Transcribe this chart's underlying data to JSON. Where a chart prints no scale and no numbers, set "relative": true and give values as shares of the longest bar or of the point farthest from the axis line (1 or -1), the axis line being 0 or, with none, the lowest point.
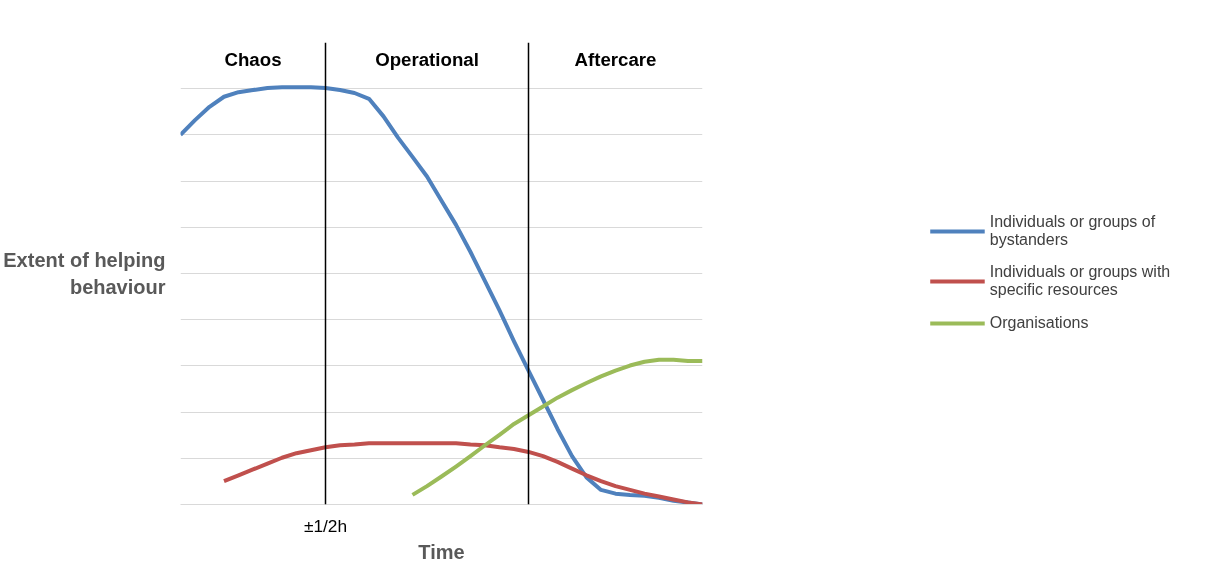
{
  "chart_data": {
    "type": "line",
    "relative": true,
    "xlabel": "Time",
    "ylabel": "Extent of helping behaviour",
    "grid": "y",
    "legend": "right",
    "line_style": "solid",
    "marker": "none",
    "categories": [
      null,
      null,
      null,
      null,
      null,
      null,
      null,
      null,
      null,
      null,
      null,
      null,
      null,
      null,
      null,
      null,
      null,
      null,
      null,
      null,
      null,
      null,
      null,
      null,
      null,
      null,
      null,
      null,
      null,
      null,
      null,
      null,
      null,
      null,
      null,
      null,
      null
    ],
    "annotations": [
      "±1/2h",
      "Chaos",
      "Operational",
      "Aftercare"
    ],
    "series": [
      {
        "name": "Individuals or groups of bystanders",
        "color": "#4f81bd",
        "values": [
          0.886,
          0.921,
          0.953,
          0.977,
          0.988,
          0.993,
          0.998,
          1,
          1,
          1,
          0.998,
          0.993,
          0.986,
          0.972,
          0.93,
          0.879,
          0.833,
          0.786,
          0.728,
          0.67,
          0.605,
          0.535,
          0.465,
          0.391,
          0.321,
          0.251,
          0.181,
          0.116,
          0.065,
          0.035,
          0.026,
          0.023,
          0.021,
          0.016,
          0.009,
          0.005,
          0
        ]
      },
      {
        "name": "Individuals or groups with specific resources",
        "color": "#c0504d",
        "values": [
          null,
          null,
          null,
          0.056,
          0.07,
          0.084,
          0.098,
          0.112,
          0.123,
          0.13,
          0.137,
          0.142,
          0.144,
          0.147,
          0.147,
          0.147,
          0.147,
          0.147,
          0.147,
          0.147,
          0.144,
          0.142,
          0.137,
          0.133,
          0.126,
          0.116,
          0.102,
          0.086,
          0.07,
          0.056,
          0.044,
          0.035,
          0.026,
          0.019,
          0.012,
          0.005,
          0
        ]
      },
      {
        "name": "Organisations",
        "color": "#9bbb59",
        "values": [
          null,
          null,
          null,
          null,
          null,
          null,
          null,
          null,
          null,
          null,
          null,
          null,
          null,
          null,
          null,
          null,
          0.023,
          0.044,
          0.067,
          0.091,
          0.116,
          0.142,
          0.167,
          0.193,
          0.214,
          0.235,
          0.256,
          0.274,
          0.291,
          0.307,
          0.321,
          0.333,
          0.342,
          0.347,
          0.347,
          0.344,
          0.344
        ]
      }
    ]
  }
}
